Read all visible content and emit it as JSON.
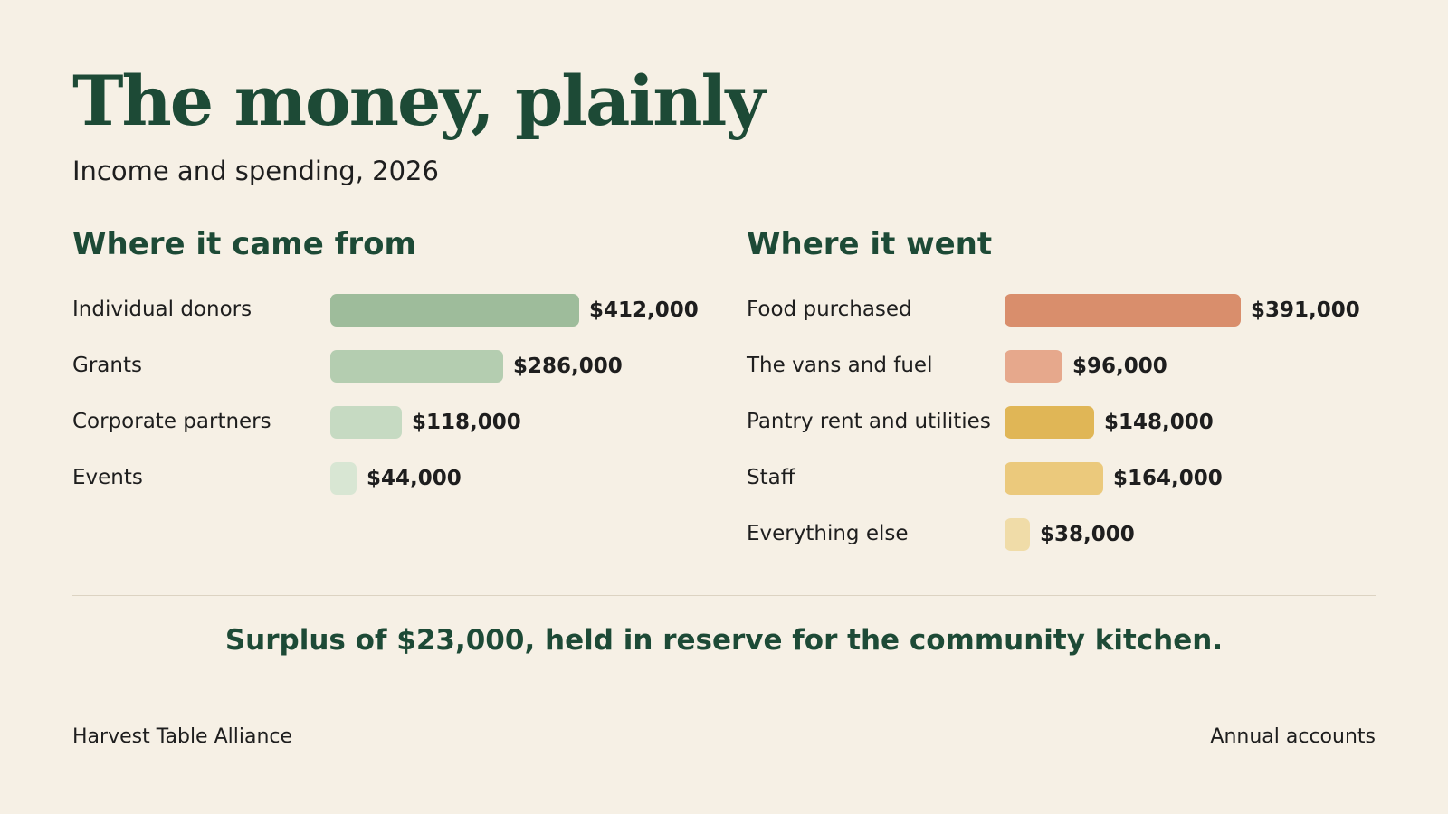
{
  "title": "The money, plainly",
  "subtitle": "Income and spending, 2026",
  "summary": "Surplus of $23,000, held in reserve for the community kitchen.",
  "footer": {
    "org": "Harvest Table Alliance",
    "doc": "Annual accounts"
  },
  "chart_data": [
    {
      "type": "bar",
      "orientation": "horizontal",
      "title": "Where it came from",
      "categories": [
        "Individual donors",
        "Grants",
        "Corporate partners",
        "Events"
      ],
      "values": [
        412000,
        286000,
        118000,
        44000
      ],
      "value_labels": [
        "$412,000",
        "$286,000",
        "$118,000",
        "$44,000"
      ],
      "colors": [
        "#9ebc9b",
        "#b4cdb0",
        "#c6dac2",
        "#d8e6d3"
      ],
      "xlim": [
        0,
        412000
      ]
    },
    {
      "type": "bar",
      "orientation": "horizontal",
      "title": "Where it went",
      "categories": [
        "Food purchased",
        "The vans and fuel",
        "Pantry rent and utilities",
        "Staff",
        "Everything else"
      ],
      "values": [
        391000,
        96000,
        148000,
        164000,
        38000
      ],
      "value_labels": [
        "$391,000",
        "$96,000",
        "$148,000",
        "$164,000",
        "$38,000"
      ],
      "colors": [
        "#d98e6c",
        "#e6a88c",
        "#e0b656",
        "#ebc97c",
        "#f0dca8"
      ],
      "xlim": [
        0,
        412000
      ]
    }
  ]
}
